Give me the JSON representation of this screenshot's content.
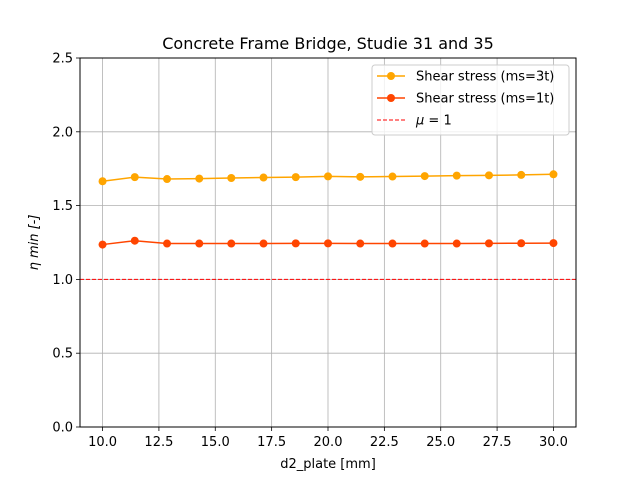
{
  "chart_data": {
    "type": "line",
    "title": "Concrete Frame Bridge, Studie 31 and 35",
    "xlabel": "d2_plate [mm]",
    "ylabel": "η min [-]",
    "xlim": [
      9.0,
      31.0
    ],
    "ylim": [
      0.0,
      2.5
    ],
    "xticks": [
      10.0,
      12.5,
      15.0,
      17.5,
      20.0,
      22.5,
      25.0,
      27.5,
      30.0
    ],
    "xtick_labels": [
      "10.0",
      "12.5",
      "15.0",
      "17.5",
      "20.0",
      "22.5",
      "25.0",
      "27.5",
      "30.0"
    ],
    "yticks": [
      0.0,
      0.5,
      1.0,
      1.5,
      2.0,
      2.5
    ],
    "ytick_labels": [
      "0.0",
      "0.5",
      "1.0",
      "1.5",
      "2.0",
      "2.5"
    ],
    "grid": true,
    "legend_position": "top-right",
    "x": [
      10.0,
      11.43,
      12.86,
      14.29,
      15.71,
      17.14,
      18.57,
      20.0,
      21.43,
      22.86,
      24.29,
      25.71,
      27.14,
      28.57,
      30.0
    ],
    "series": [
      {
        "name": "Shear stress (ms=3t)",
        "color": "#ffa500",
        "values": [
          1.665,
          1.693,
          1.68,
          1.683,
          1.687,
          1.69,
          1.693,
          1.698,
          1.695,
          1.697,
          1.7,
          1.703,
          1.705,
          1.708,
          1.712
        ]
      },
      {
        "name": "Shear stress (ms=1t)",
        "color": "#ff4500",
        "values": [
          1.236,
          1.262,
          1.243,
          1.243,
          1.243,
          1.243,
          1.244,
          1.244,
          1.243,
          1.243,
          1.243,
          1.243,
          1.244,
          1.245,
          1.246
        ]
      }
    ],
    "reference_line": {
      "name": "μ = 1",
      "name_prefix": "μ",
      "name_suffix": " = 1",
      "y": 1.0,
      "color": "#ff0000",
      "style": "dashed"
    }
  }
}
